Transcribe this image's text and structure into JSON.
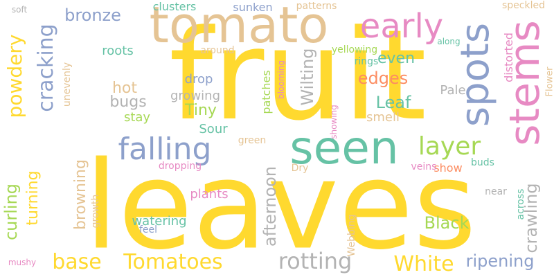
{
  "colors": {
    "yellow": "#ffd92f",
    "tan": "#e5c494",
    "blue": "#8da0cb",
    "green": "#66c2a5",
    "orange": "#fc8d62",
    "pink": "#e78ac3",
    "lime": "#a6d854",
    "gray": "#b3b3b3"
  },
  "words": [
    {
      "text": "leaves",
      "color": "yellow"
    },
    {
      "text": "fruit",
      "color": "yellow"
    },
    {
      "text": "tomato",
      "color": "tan"
    },
    {
      "text": "seen",
      "color": "green"
    },
    {
      "text": "stems",
      "color": "pink"
    },
    {
      "text": "spots",
      "color": "blue"
    },
    {
      "text": "early",
      "color": "pink"
    },
    {
      "text": "falling",
      "color": "blue"
    },
    {
      "text": "layer",
      "color": "lime"
    },
    {
      "text": "rotting",
      "color": "gray"
    },
    {
      "text": "Tomatoes",
      "color": "yellow"
    },
    {
      "text": "White",
      "color": "yellow"
    },
    {
      "text": "base",
      "color": "yellow"
    },
    {
      "text": "cracking",
      "color": "blue"
    },
    {
      "text": "powdery",
      "color": "yellow"
    },
    {
      "text": "bronze",
      "color": "blue"
    },
    {
      "text": "edges",
      "color": "orange"
    },
    {
      "text": "Leaf",
      "color": "green"
    },
    {
      "text": "Black",
      "color": "lime"
    },
    {
      "text": "ripening",
      "color": "blue"
    },
    {
      "text": "afternoon",
      "color": "gray"
    },
    {
      "text": "Wilting",
      "color": "gray"
    },
    {
      "text": "crawling",
      "color": "gray"
    },
    {
      "text": "curling",
      "color": "lime"
    },
    {
      "text": "turning",
      "color": "yellow"
    },
    {
      "text": "browning",
      "color": "tan"
    },
    {
      "text": "Tiny",
      "color": "lime"
    },
    {
      "text": "even",
      "color": "green"
    },
    {
      "text": "bugs",
      "color": "gray"
    },
    {
      "text": "hot",
      "color": "tan"
    },
    {
      "text": "drop",
      "color": "blue"
    },
    {
      "text": "Sour",
      "color": "green"
    },
    {
      "text": "smell",
      "color": "tan"
    },
    {
      "text": "plants",
      "color": "pink"
    },
    {
      "text": "watering",
      "color": "green"
    },
    {
      "text": "roots",
      "color": "green"
    },
    {
      "text": "clusters",
      "color": "green"
    },
    {
      "text": "sunken",
      "color": "blue"
    },
    {
      "text": "patterns",
      "color": "tan"
    },
    {
      "text": "speckled",
      "color": "tan"
    },
    {
      "text": "distorted",
      "color": "pink"
    },
    {
      "text": "Flower",
      "color": "tan"
    },
    {
      "text": "growing",
      "color": "gray"
    },
    {
      "text": "stay",
      "color": "lime"
    },
    {
      "text": "Pale",
      "color": "gray"
    },
    {
      "text": "show",
      "color": "orange"
    },
    {
      "text": "patches",
      "color": "lime"
    },
    {
      "text": "unevenly",
      "color": "tan"
    },
    {
      "text": "green",
      "color": "tan"
    },
    {
      "text": "Dry",
      "color": "tan"
    },
    {
      "text": "across",
      "color": "green"
    },
    {
      "text": "near",
      "color": "gray"
    },
    {
      "text": "growth",
      "color": "tan"
    },
    {
      "text": "buds",
      "color": "green"
    },
    {
      "text": "feel",
      "color": "blue"
    },
    {
      "text": "dropping",
      "color": "pink"
    },
    {
      "text": "veins",
      "color": "pink"
    },
    {
      "text": "Webbing",
      "color": "tan"
    },
    {
      "text": "showing",
      "color": "pink"
    },
    {
      "text": "blooming",
      "color": "pink"
    },
    {
      "text": "rings",
      "color": "green"
    },
    {
      "text": "yellowing",
      "color": "lime"
    },
    {
      "text": "around",
      "color": "tan"
    },
    {
      "text": "along",
      "color": "green"
    },
    {
      "text": "soft",
      "color": "gray"
    },
    {
      "text": "mushy",
      "color": "pink"
    }
  ]
}
